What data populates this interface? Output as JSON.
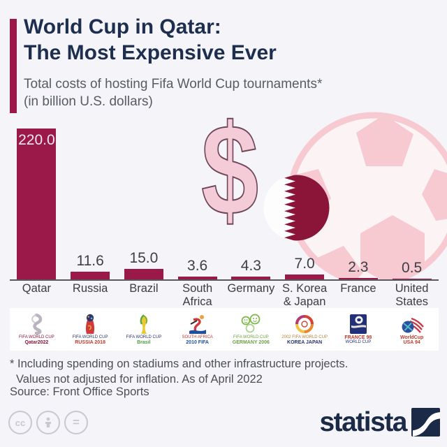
{
  "page": {
    "background": "#f5f4f8",
    "accent_color": "#9b1948"
  },
  "header": {
    "title_line1": "World Cup in Qatar:",
    "title_line2": "The Most Expensive Ever",
    "subtitle_line1": "Total costs of hosting Fifa World Cup tournaments*",
    "subtitle_line2": "(in billion U.S. dollars)"
  },
  "chart_data": {
    "type": "bar",
    "categories": [
      "Qatar",
      "Russia",
      "Brazil",
      "South Africa",
      "Germany",
      "S. Korea & Japan",
      "France",
      "United States"
    ],
    "values": [
      220.0,
      11.6,
      15.0,
      3.6,
      4.3,
      7.0,
      2.3,
      0.5
    ],
    "value_labels": [
      "220.0",
      "11.6",
      "15.0",
      "3.6",
      "4.3",
      "7.0",
      "2.3",
      "0.5"
    ],
    "title": "World Cup in Qatar: The Most Expensive Ever",
    "xlabel": "",
    "ylabel": "Total cost in billion U.S. dollars",
    "ylim": [
      0,
      230
    ],
    "bar_color": "#9b1948",
    "grid": false,
    "legend": false
  },
  "columns": [
    {
      "label_line1": "Qatar",
      "label_line2": "",
      "value_label": "220.0"
    },
    {
      "label_line1": "Russia",
      "label_line2": "",
      "value_label": "11.6"
    },
    {
      "label_line1": "Brazil",
      "label_line2": "",
      "value_label": "15.0"
    },
    {
      "label_line1": "South",
      "label_line2": "Africa",
      "value_label": "3.6"
    },
    {
      "label_line1": "Germany",
      "label_line2": "",
      "value_label": "4.3"
    },
    {
      "label_line1": "S. Korea",
      "label_line2": "& Japan",
      "value_label": "7.0"
    },
    {
      "label_line1": "France",
      "label_line2": "",
      "value_label": "2.3"
    },
    {
      "label_line1": "United",
      "label_line2": "States",
      "value_label": "0.5"
    }
  ],
  "logos": [
    {
      "name": "fifa-world-cup-qatar-2022-logo",
      "caption_line1": "FIFA WORLD CUP",
      "caption_line2": "Qatar2022"
    },
    {
      "name": "fifa-world-cup-russia-2018-logo",
      "caption_line1": "FIFA WORLD CUP",
      "caption_line2": "RUSSIA 2018"
    },
    {
      "name": "fifa-world-cup-brasil-2014-logo",
      "caption_line1": "FIFA WORLD CUP",
      "caption_line2": "Brasil"
    },
    {
      "name": "fifa-world-cup-south-africa-2010-logo",
      "caption_line1": "SOUTH AFRICA",
      "caption_line2": "2010 FIFA"
    },
    {
      "name": "fifa-world-cup-germany-2006-logo",
      "caption_line1": "FIFA WORLD CUP",
      "caption_line2": "GERMANY 2006"
    },
    {
      "name": "fifa-world-cup-korea-japan-2002-logo",
      "caption_line1": "2002 FIFA WORLD CUP",
      "caption_line2": "KOREA JAPAN"
    },
    {
      "name": "france-98-world-cup-logo",
      "caption_line1": "FRANCE 98",
      "caption_line2": "WORLD CUP"
    },
    {
      "name": "world-cup-usa-94-logo",
      "caption_line1": "WorldCup",
      "caption_line2": "USA 94"
    }
  ],
  "decor": {
    "dollar_sign": "$",
    "flag": "qatar-flag",
    "ball": "soccer-ball",
    "pink_light": "#f7cad2",
    "flag_maroon": "#8a1538"
  },
  "footnote": {
    "line1": "* Including spending on stadiums and other infrastructure projects.",
    "line2": "Values not adjusted for inflation. As of April 2022",
    "source": "Source: Front Office Sports"
  },
  "footer": {
    "cc_label": "cc",
    "equal_label": "=",
    "brand": "statista"
  }
}
